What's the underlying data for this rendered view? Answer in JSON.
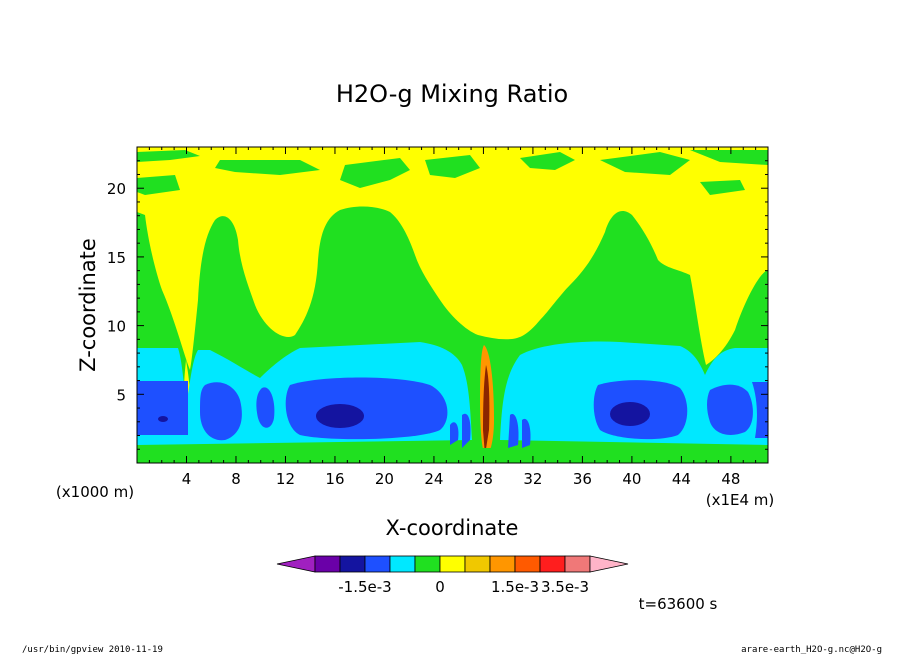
{
  "chart_data": {
    "type": "heatmap",
    "title": "H2O-g Mixing Ratio",
    "xlabel": "X-coordinate",
    "ylabel": "Z-coordinate",
    "x_unit": "(x1E4 m)",
    "y_unit": "(x1000 m)",
    "xlim": [
      0,
      51
    ],
    "ylim": [
      0,
      23
    ],
    "x_ticks": [
      4,
      8,
      12,
      16,
      20,
      24,
      28,
      32,
      36,
      40,
      44,
      48
    ],
    "x_tick_labels": [
      "4",
      "8",
      "12",
      "16",
      "20",
      "24",
      "28",
      "32",
      "36",
      "40",
      "44",
      "48"
    ],
    "y_ticks": [
      5,
      10,
      15,
      20
    ],
    "y_tick_labels": [
      "5",
      "10",
      "15",
      "20"
    ],
    "grid": false,
    "colorbar": {
      "orientation": "horizontal",
      "colors": [
        "#a020c0",
        "#6a00a8",
        "#1414a0",
        "#1e50ff",
        "#00e8ff",
        "#20e020",
        "#ffff00",
        "#f0c800",
        "#ff9600",
        "#ff5a00",
        "#ff1e1e",
        "#f07878",
        "#ffb4c8"
      ],
      "tick_labels": [
        "-1.5e-3",
        "0",
        "1.5e-3",
        "3.5e-3"
      ],
      "extend": "both"
    },
    "levels": [
      "background",
      "green",
      "yellow",
      "cyan",
      "blue",
      "dark-blue"
    ],
    "time_label": "t=63600 s"
  },
  "footer": {
    "left": "/usr/bin/gpview   2010-11-19",
    "right": "arare-earth_H2O-g.nc@H2O-g"
  }
}
